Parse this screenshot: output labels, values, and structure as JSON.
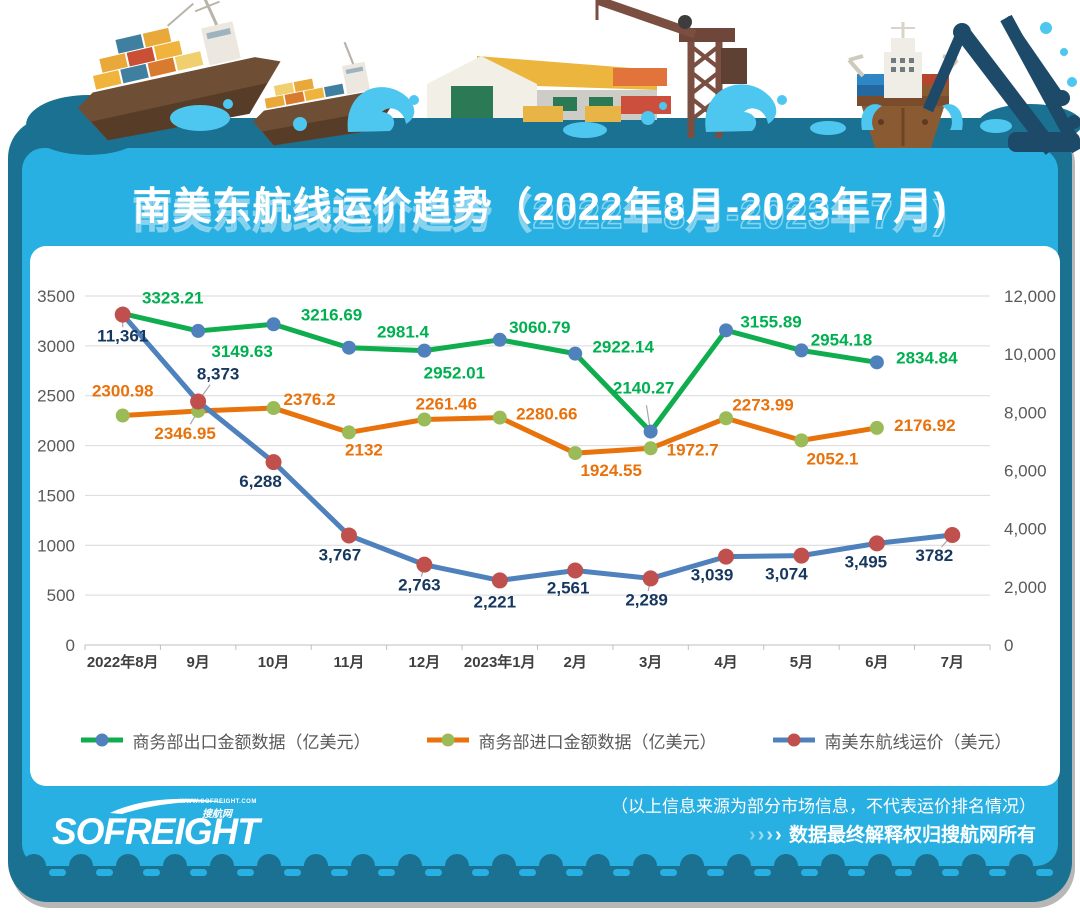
{
  "title": "南美东航线运价趋势（2022年8月-2023年7月)",
  "brand_colors": {
    "card_dark_teal": "#1b7191",
    "card_light_blue": "#29b0e2",
    "splash_blue": "#4ec7f0",
    "panel_white": "#ffffff"
  },
  "chart_data": {
    "type": "line",
    "title": "南美东航线运价趋势（2022年8月-2023年7月)",
    "categories": [
      "2022年8月",
      "9月",
      "10月",
      "11月",
      "12月",
      "2023年1月",
      "2月",
      "3月",
      "4月",
      "5月",
      "6月",
      "7月"
    ],
    "grid": true,
    "legend_position": "bottom",
    "left_axis": {
      "min": 0,
      "max": 3500,
      "step": 500,
      "ticks": [
        "3500",
        "3000",
        "2500",
        "2000",
        "1500",
        "1000",
        "500",
        "0"
      ]
    },
    "right_axis": {
      "min": 0,
      "max": 12000,
      "step": 2000,
      "ticks": [
        "12,000",
        "10,000",
        "8,000",
        "6,000",
        "4,000",
        "2,000",
        "0"
      ]
    },
    "series": [
      {
        "name": "商务部出口金额数据（亿美元）",
        "axis": "left",
        "color": "#10ad4f",
        "marker_color": "#4f81bd",
        "label_color": "#00b050",
        "values": [
          3323.21,
          3149.63,
          3216.69,
          2981.4,
          2952.01,
          3060.79,
          2922.14,
          2140.27,
          3155.89,
          2954.18,
          2834.84
        ],
        "labels": [
          "3323.21",
          "3149.63",
          "3216.69",
          "2981.4",
          "2952.01",
          "3060.79",
          "2922.14",
          "2140.27",
          "3155.89",
          "2954.18",
          "2834.84"
        ],
        "label_offsets": [
          [
            50,
            -16
          ],
          [
            44,
            20
          ],
          [
            58,
            -10
          ],
          [
            54,
            -16
          ],
          [
            30,
            22
          ],
          [
            40,
            -13
          ],
          [
            48,
            -7
          ],
          [
            -7,
            -44
          ],
          [
            45,
            -9
          ],
          [
            40,
            -11
          ],
          [
            50,
            -5
          ]
        ],
        "leader_points": [
          7
        ]
      },
      {
        "name": "商务部进口金额数据（亿美元）",
        "axis": "left",
        "color": "#e8720c",
        "marker_color": "#9bbb59",
        "label_color": "#e8720c",
        "values": [
          2300.98,
          2346.95,
          2376.2,
          2132,
          2261.46,
          2280.66,
          1924.55,
          1972.7,
          2273.99,
          2052.1,
          2176.92
        ],
        "labels": [
          "2300.98",
          "2346.95",
          "2376.2",
          "2132",
          "2261.46",
          "2280.66",
          "1924.55",
          "1972.7",
          "2273.99",
          "2052.1",
          "2176.92"
        ],
        "label_offsets": [
          [
            0,
            -25
          ],
          [
            -13,
            22
          ],
          [
            36,
            -9
          ],
          [
            15,
            17
          ],
          [
            22,
            -16
          ],
          [
            47,
            -4
          ],
          [
            36,
            17
          ],
          [
            42,
            1
          ],
          [
            37,
            -14
          ],
          [
            31,
            18
          ],
          [
            48,
            -3
          ]
        ],
        "leader_points": [
          1
        ]
      },
      {
        "name": "南美东航线运价（美元）",
        "axis": "right",
        "color": "#4f81bd",
        "marker_color": "#c0504d",
        "label_color": "#17375e",
        "values": [
          11361,
          8373,
          6288,
          3767,
          2763,
          2221,
          2561,
          2289,
          3039,
          3074,
          3495,
          3782
        ],
        "labels": [
          "11,361",
          "8,373",
          "6,288",
          "3,767",
          "2,763",
          "2,221",
          "2,561",
          "2,289",
          "3,039",
          "3,074",
          "3,495",
          "3782"
        ],
        "label_offsets": [
          [
            0,
            21
          ],
          [
            20,
            -28
          ],
          [
            -13,
            19
          ],
          [
            -9,
            19
          ],
          [
            -5,
            20
          ],
          [
            -5,
            21
          ],
          [
            -7,
            17
          ],
          [
            -4,
            21
          ],
          [
            -14,
            18
          ],
          [
            -15,
            18
          ],
          [
            -11,
            18
          ],
          [
            -18,
            20
          ]
        ],
        "leader_points": [
          0,
          1,
          4,
          7,
          11
        ]
      }
    ]
  },
  "footer": {
    "note_line1": "（以上信息来源为部分市场信息，不代表运价排名情况）",
    "note_line2": "数据最终解释权归搜航网所有",
    "chevrons": [
      "›",
      "›",
      "›",
      "›"
    ],
    "logo_text": "SOFREIGHT",
    "logo_sub": "搜航网",
    "logo_url": "WWW.SOFREIGHT.COM"
  }
}
